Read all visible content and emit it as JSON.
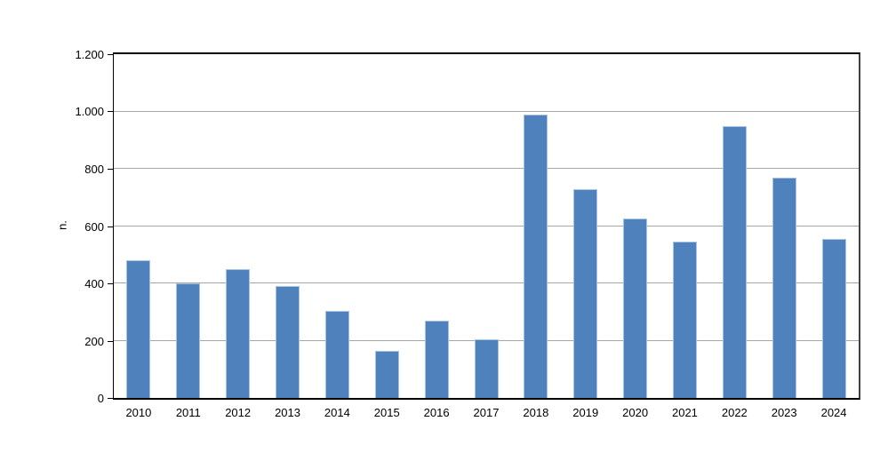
{
  "chart_data": {
    "type": "bar",
    "title": "",
    "xlabel": "",
    "ylabel": "n.",
    "ylim": [
      0,
      1200
    ],
    "grid": "horizontal",
    "legend": "none",
    "categories": [
      "2010",
      "2011",
      "2012",
      "2013",
      "2014",
      "2015",
      "2016",
      "2017",
      "2018",
      "2019",
      "2020",
      "2021",
      "2022",
      "2023",
      "2024"
    ],
    "values": [
      480,
      400,
      450,
      390,
      305,
      165,
      270,
      205,
      990,
      730,
      625,
      545,
      950,
      770,
      555
    ],
    "yticks": [
      {
        "value": 0,
        "label": "0"
      },
      {
        "value": 200,
        "label": "200"
      },
      {
        "value": 400,
        "label": "400"
      },
      {
        "value": 600,
        "label": "600"
      },
      {
        "value": 800,
        "label": "800"
      },
      {
        "value": 1000,
        "label": "1.000"
      },
      {
        "value": 1200,
        "label": "1.200"
      }
    ],
    "colors": {
      "bar_fill": "#4F81BD",
      "bar_border": "#A9C3E2",
      "gridline": "#A6A6A6",
      "axis": "#000000",
      "plot_right_border": "#404040",
      "background": "#FFFFFF",
      "text": "#000000"
    }
  }
}
